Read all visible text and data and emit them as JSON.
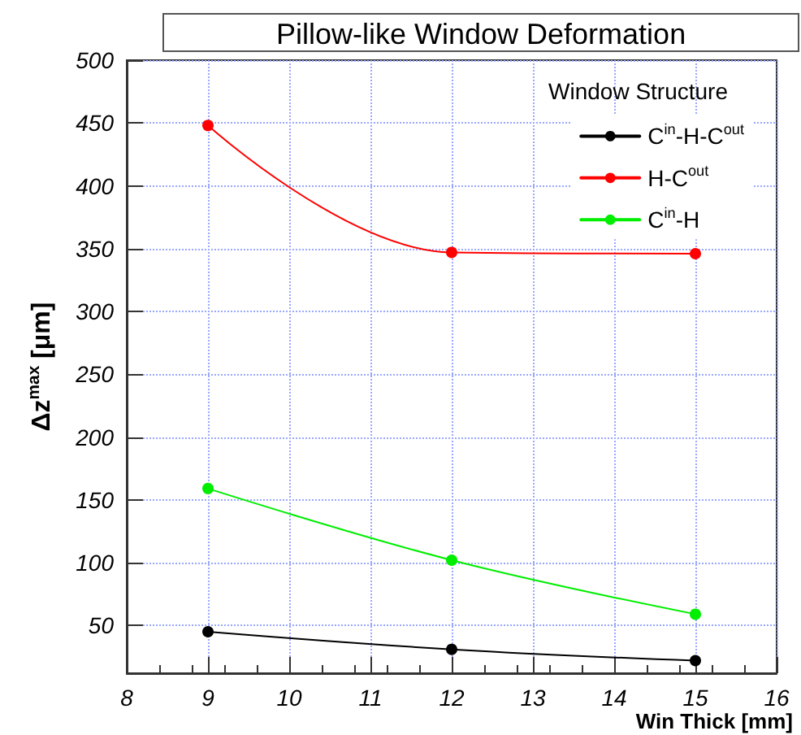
{
  "chart_data": {
    "type": "line",
    "title": "Pillow-like Window Deformation",
    "xlabel": "Win Thick [mm]",
    "ylabel": "Δz$^{max}$ [μm]",
    "legend_title": "Window Structure",
    "x": [
      9,
      12,
      15
    ],
    "series": [
      {
        "name": "C$^{in}$-H-C$^{out}$",
        "color": "#000000",
        "values": [
          45,
          31,
          22
        ]
      },
      {
        "name": "H-C$^{out}$",
        "color": "#ff0000",
        "values": [
          448,
          347,
          346
        ]
      },
      {
        "name": "C$^{in}$-H",
        "color": "#00ee00",
        "values": [
          159,
          102,
          59
        ]
      }
    ],
    "xlim": [
      8,
      16
    ],
    "xticks": [
      8,
      9,
      10,
      11,
      12,
      13,
      14,
      15,
      16
    ],
    "ylim": [
      12,
      500
    ],
    "yticks": [
      50,
      100,
      150,
      200,
      250,
      300,
      350,
      400,
      450,
      500
    ],
    "grid": true,
    "legend": "top right",
    "marker": "circle",
    "line_style": "solid"
  }
}
